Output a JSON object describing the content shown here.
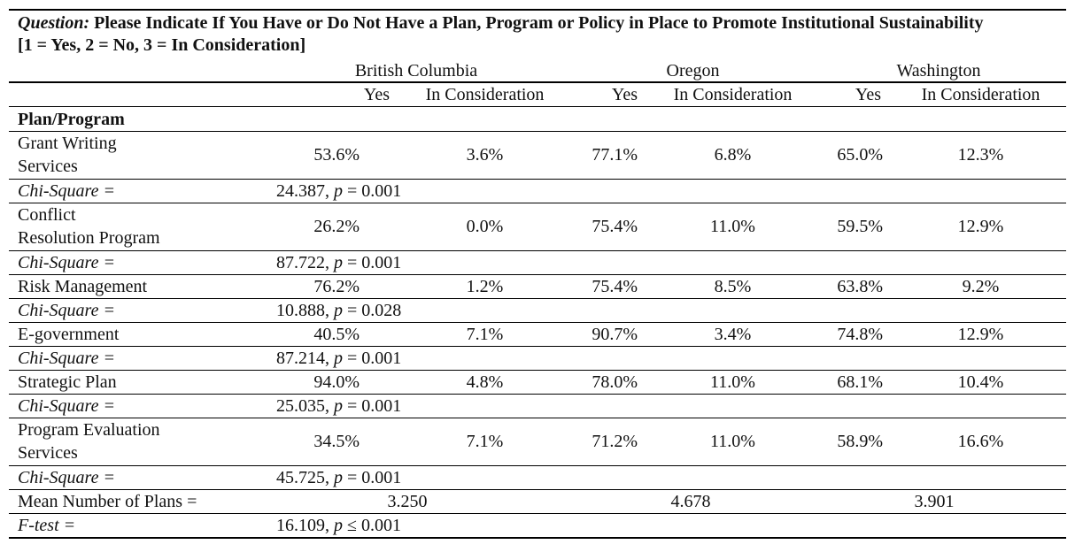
{
  "question": {
    "label": "Question:",
    "text": " Please Indicate If You Have or Do Not Have a Plan, Program or Policy in Place to Promote Institutional Sustainability",
    "scale": "[1 = Yes, 2 = No, 3 = In Consideration]"
  },
  "regions": [
    "British Columbia",
    "Oregon",
    "Washington"
  ],
  "subheaders": [
    "Yes",
    "In Consideration",
    "Yes",
    "In Consideration",
    "Yes",
    "In Consideration"
  ],
  "section_label": "Plan/Program",
  "rows": [
    {
      "label1": "Grant Writing",
      "label2": "Services",
      "values": [
        "53.6%",
        "3.6%",
        "77.1%",
        "6.8%",
        "65.0%",
        "12.3%"
      ],
      "chi_prefix": "24.387, ",
      "chi_p": "p",
      "chi_suffix": " = 0.001"
    },
    {
      "label1": "Conflict",
      "label2": "Resolution Program",
      "values": [
        "26.2%",
        "0.0%",
        "75.4%",
        "11.0%",
        "59.5%",
        "12.9%"
      ],
      "chi_prefix": "87.722, ",
      "chi_p": "p",
      "chi_suffix": " = 0.001"
    },
    {
      "label1": "Risk Management",
      "label2": "",
      "values": [
        "76.2%",
        "1.2%",
        "75.4%",
        "8.5%",
        "63.8%",
        "9.2%"
      ],
      "chi_prefix": "10.888, ",
      "chi_p": "p",
      "chi_suffix": " = 0.028"
    },
    {
      "label1": "E-government",
      "label2": "",
      "values": [
        "40.5%",
        "7.1%",
        "90.7%",
        "3.4%",
        "74.8%",
        "12.9%"
      ],
      "chi_prefix": "87.214, ",
      "chi_p": "p",
      "chi_suffix": " = 0.001"
    },
    {
      "label1": "Strategic Plan",
      "label2": "",
      "values": [
        "94.0%",
        "4.8%",
        "78.0%",
        "11.0%",
        "68.1%",
        "10.4%"
      ],
      "chi_prefix": "25.035, ",
      "chi_p": "p",
      "chi_suffix": " = 0.001"
    },
    {
      "label1": "Program Evaluation",
      "label2": "Services",
      "values": [
        "34.5%",
        "7.1%",
        "71.2%",
        "11.0%",
        "58.9%",
        "16.6%"
      ],
      "chi_prefix": "45.725, ",
      "chi_p": "p",
      "chi_suffix": " = 0.001"
    }
  ],
  "chi_label": "Chi-Square =",
  "mean": {
    "label": "Mean Number of Plans =",
    "values": [
      "3.250",
      "4.678",
      "3.901"
    ]
  },
  "ftest": {
    "label": "F-test =",
    "prefix": "16.109, ",
    "p": "p",
    "suffix": " ≤ 0.001"
  }
}
